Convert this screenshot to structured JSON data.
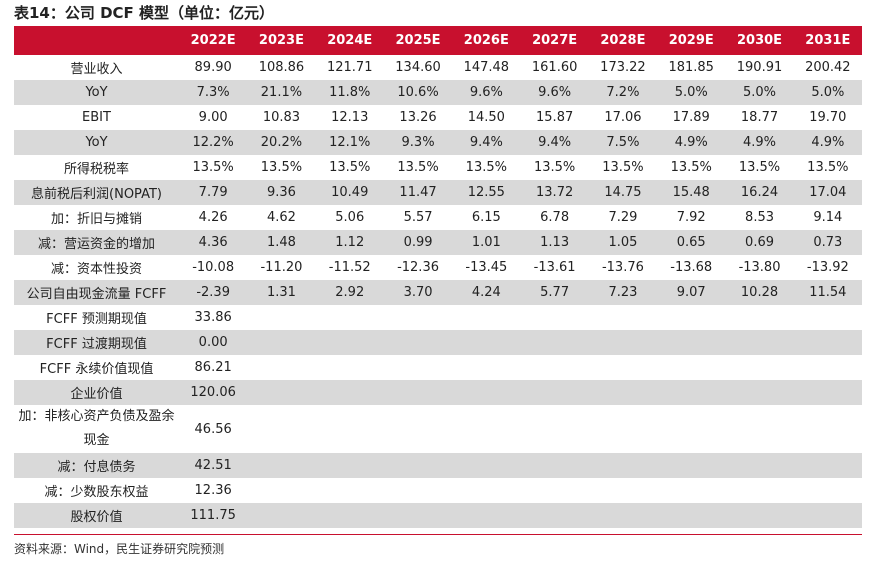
{
  "title": "表14：公司 DCF 模型（单位：亿元）",
  "header": [
    "",
    "2022E",
    "2023E",
    "2024E",
    "2025E",
    "2026E",
    "2027E",
    "2028E",
    "2029E",
    "2030E",
    "2031E"
  ],
  "rows": [
    {
      "label": "营业收入",
      "values": [
        "89.90",
        "108.86",
        "121.71",
        "134.60",
        "147.48",
        "161.60",
        "173.22",
        "181.85",
        "190.91",
        "200.42"
      ]
    },
    {
      "label": "YoY",
      "values": [
        "7.3%",
        "21.1%",
        "11.8%",
        "10.6%",
        "9.6%",
        "9.6%",
        "7.2%",
        "5.0%",
        "5.0%",
        "5.0%"
      ]
    },
    {
      "label": "EBIT",
      "values": [
        "9.00",
        "10.83",
        "12.13",
        "13.26",
        "14.50",
        "15.87",
        "17.06",
        "17.89",
        "18.77",
        "19.70"
      ]
    },
    {
      "label": "YoY",
      "values": [
        "12.2%",
        "20.2%",
        "12.1%",
        "9.3%",
        "9.4%",
        "9.4%",
        "7.5%",
        "4.9%",
        "4.9%",
        "4.9%"
      ]
    },
    {
      "label": "所得税税率",
      "values": [
        "13.5%",
        "13.5%",
        "13.5%",
        "13.5%",
        "13.5%",
        "13.5%",
        "13.5%",
        "13.5%",
        "13.5%",
        "13.5%"
      ]
    },
    {
      "label": "息前税后利润(NOPAT)",
      "values": [
        "7.79",
        "9.36",
        "10.49",
        "11.47",
        "12.55",
        "13.72",
        "14.75",
        "15.48",
        "16.24",
        "17.04"
      ]
    },
    {
      "label": "加：折旧与摊销",
      "values": [
        "4.26",
        "4.62",
        "5.06",
        "5.57",
        "6.15",
        "6.78",
        "7.29",
        "7.92",
        "8.53",
        "9.14"
      ]
    },
    {
      "label": "减：营运资金的增加",
      "values": [
        "4.36",
        "1.48",
        "1.12",
        "0.99",
        "1.01",
        "1.13",
        "1.05",
        "0.65",
        "0.69",
        "0.73"
      ]
    },
    {
      "label": "减：资本性投资",
      "values": [
        "-10.08",
        "-11.20",
        "-11.52",
        "-12.36",
        "-13.45",
        "-13.61",
        "-13.76",
        "-13.68",
        "-13.80",
        "-13.92"
      ]
    },
    {
      "label": "公司自由现金流量 FCFF",
      "values": [
        "-2.39",
        "1.31",
        "2.92",
        "3.70",
        "4.24",
        "5.77",
        "7.23",
        "9.07",
        "10.28",
        "11.54"
      ]
    },
    {
      "label": "FCFF 预测期现值",
      "values": [
        "33.86",
        "",
        "",
        "",
        "",
        "",
        "",
        "",
        "",
        ""
      ]
    },
    {
      "label": "FCFF 过渡期现值",
      "values": [
        "0.00",
        "",
        "",
        "",
        "",
        "",
        "",
        "",
        "",
        ""
      ]
    },
    {
      "label": "FCFF 永续价值现值",
      "values": [
        "86.21",
        "",
        "",
        "",
        "",
        "",
        "",
        "",
        "",
        ""
      ]
    },
    {
      "label": "企业价值",
      "values": [
        "120.06",
        "",
        "",
        "",
        "",
        "",
        "",
        "",
        "",
        ""
      ]
    },
    {
      "label": "加：非核心资产负债及盈余现金",
      "values": [
        "46.56",
        "",
        "",
        "",
        "",
        "",
        "",
        "",
        "",
        ""
      ]
    },
    {
      "label": "减：付息债务",
      "values": [
        "42.51",
        "",
        "",
        "",
        "",
        "",
        "",
        "",
        "",
        ""
      ]
    },
    {
      "label": "减：少数股东权益",
      "values": [
        "12.36",
        "",
        "",
        "",
        "",
        "",
        "",
        "",
        "",
        ""
      ]
    },
    {
      "label": "股权价值",
      "values": [
        "111.75",
        "",
        "",
        "",
        "",
        "",
        "",
        "",
        "",
        ""
      ]
    }
  ],
  "source": "资料来源：Wind，民生证券研究院预测",
  "colors": {
    "header_bg": "#c8102e",
    "header_text": "#ffffff",
    "stripe": "#d9d9d9"
  }
}
